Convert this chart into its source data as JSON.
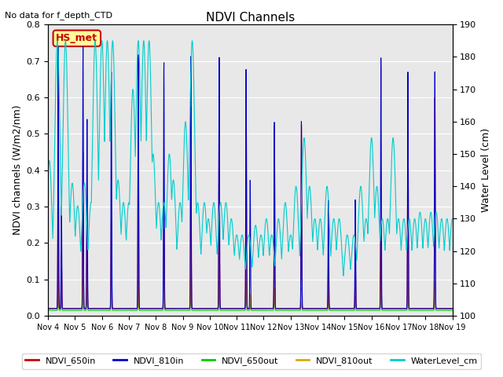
{
  "title": "NDVI Channels",
  "subtitle": "No data for f_depth_CTD",
  "ylabel_left": "NDVI channels (W/m2/nm)",
  "ylabel_right": "Water Level (cm)",
  "ylim_left": [
    0.0,
    0.8
  ],
  "ylim_right": [
    100,
    190
  ],
  "yticks_left": [
    0.0,
    0.1,
    0.2,
    0.3,
    0.4,
    0.5,
    0.6,
    0.7,
    0.8
  ],
  "yticks_right": [
    100,
    110,
    120,
    130,
    140,
    150,
    160,
    170,
    180,
    190
  ],
  "xtick_labels": [
    "Nov 4",
    "Nov 5",
    "Nov 6",
    "Nov 7",
    "Nov 8",
    "Nov 9",
    "Nov 10",
    "Nov 11",
    "Nov 12",
    "Nov 13",
    "Nov 14",
    "Nov 15",
    "Nov 16",
    "Nov 17",
    "Nov 18",
    "Nov 19"
  ],
  "n_days": 15,
  "colors": {
    "NDVI_650in": "#cc0000",
    "NDVI_810in": "#0000cc",
    "NDVI_650out": "#00cc00",
    "NDVI_810out": "#ddaa00",
    "WaterLevel_cm": "#00cccc"
  },
  "bg_color": "#e8e8e8",
  "annotation_text": "HS_met",
  "annotation_color": "#cc0000",
  "annotation_bg": "#ffff99",
  "figsize": [
    6.4,
    4.8
  ],
  "dpi": 100
}
